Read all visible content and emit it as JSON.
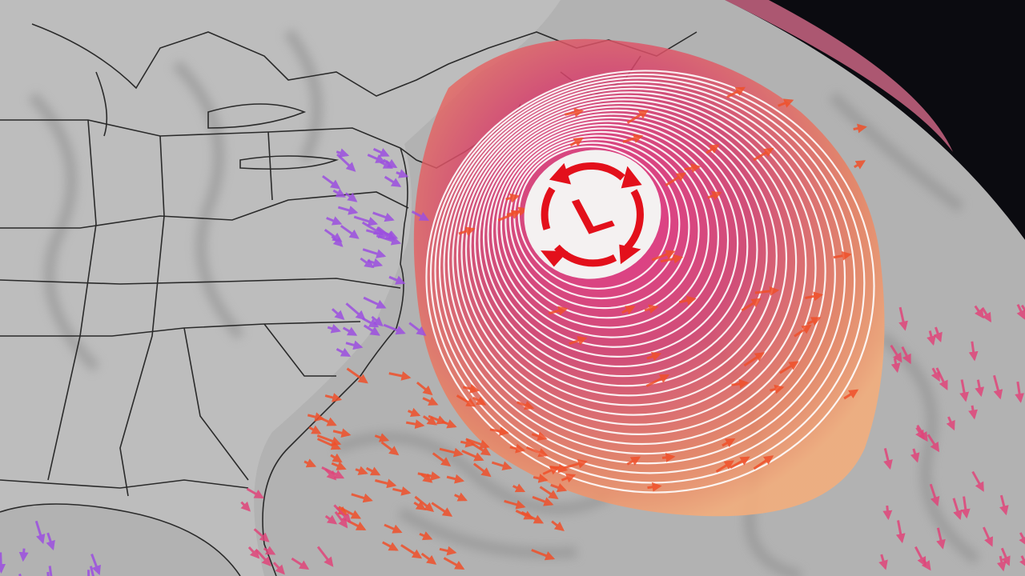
{
  "map": {
    "low_symbol": "L",
    "rotation": "counterclockwise",
    "colors": {
      "space": "#0b0b10",
      "land": "#c9c9c9",
      "ocean": "#b4b4b4",
      "clouds": "#8a8a8a",
      "borders": "#2a2a2a",
      "storm_outer": "#f2a877",
      "storm_inner": "#d9307a",
      "isobars": "#ffffff",
      "symbol_red": "#e3101b",
      "symbol_bg": "#f4f1f1",
      "wind_red": "#f0502a",
      "wind_pink": "#e0457a",
      "wind_purple": "#9c4fe0"
    }
  }
}
